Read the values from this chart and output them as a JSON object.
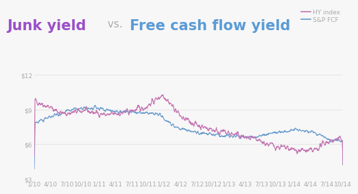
{
  "title_parts": [
    {
      "text": "Junk yield",
      "color": "#9b4fc8"
    },
    {
      "text": " vs. ",
      "color": "#aaaaaa"
    },
    {
      "text": "Free cash flow yield",
      "color": "#5b9bd5"
    }
  ],
  "legend": [
    {
      "label": "HY index",
      "color": "#c472b0"
    },
    {
      "label": "S&P FCF",
      "color": "#6699cc"
    }
  ],
  "hy_color": "#c472b0",
  "fcf_color": "#6699cc",
  "ylim": [
    3,
    12.8
  ],
  "yticks": [
    3,
    6,
    9,
    12
  ],
  "ytick_labels": [
    "$3",
    "$6",
    "$9",
    "$12"
  ],
  "xtick_labels": [
    "1/10",
    "4/10",
    "7/10",
    "10/10",
    "1/11",
    "4/11",
    "7/11",
    "10/11",
    "1/12",
    "4/12",
    "7/12",
    "10/12",
    "1/13",
    "4/13",
    "7/13",
    "10/13",
    "1/14",
    "4/14",
    "7/14",
    "10/14"
  ],
  "background_color": "#f7f7f7",
  "line_width": 0.85,
  "title_fontsize": 15,
  "tick_fontsize": 6.5,
  "legend_fontsize": 6.5,
  "vs_fontsize": 11
}
